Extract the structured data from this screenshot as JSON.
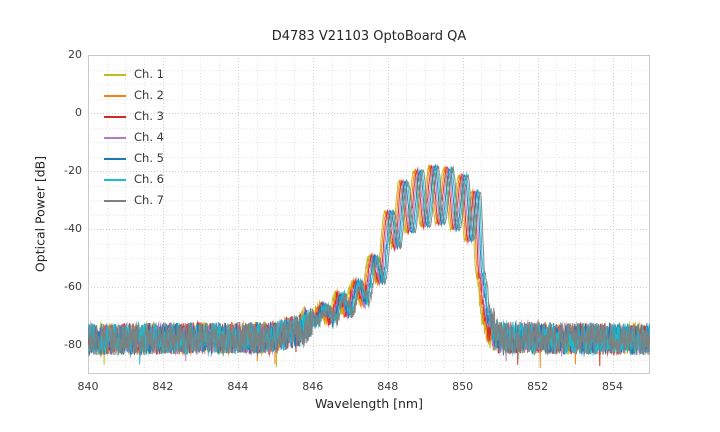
{
  "chart_data": {
    "type": "line",
    "title": "D4783 V21103 OptoBoard QA",
    "xlabel": "Wavelength [nm]",
    "ylabel": "Optical Power [dB]",
    "xlim": [
      840,
      855
    ],
    "ylim": [
      -90,
      20
    ],
    "xticks": [
      840,
      842,
      844,
      846,
      848,
      850,
      852,
      854
    ],
    "yticks": [
      20,
      0,
      -20,
      -40,
      -60,
      -80
    ],
    "minor_x_step": 0.5,
    "minor_y_step": 5,
    "grid": true,
    "legend_position": "upper-left",
    "noise_floor_db": -78,
    "noise_amplitude_db": 5.5,
    "series": [
      {
        "name": "Ch. 1",
        "color": "#bcbd22",
        "wavelength_offset_nm": -0.1
      },
      {
        "name": "Ch. 2",
        "color": "#ff7f0e",
        "wavelength_offset_nm": -0.06
      },
      {
        "name": "Ch. 3",
        "color": "#d62728",
        "wavelength_offset_nm": -0.02
      },
      {
        "name": "Ch. 4",
        "color": "#b07cc6",
        "wavelength_offset_nm": 0.02
      },
      {
        "name": "Ch. 5",
        "color": "#1f77b4",
        "wavelength_offset_nm": 0.06
      },
      {
        "name": "Ch. 6",
        "color": "#17becf",
        "wavelength_offset_nm": 0.1
      },
      {
        "name": "Ch. 7",
        "color": "#7f7f7f",
        "wavelength_offset_nm": 0.14
      }
    ],
    "envelope": [
      [
        840.0,
        -78.0
      ],
      [
        844.8,
        -77.5
      ],
      [
        845.5,
        -75.5
      ],
      [
        846.0,
        -71.5
      ],
      [
        846.28,
        -67.5
      ],
      [
        846.48,
        -71.0
      ],
      [
        846.72,
        -63.5
      ],
      [
        846.92,
        -68.5
      ],
      [
        847.16,
        -58.5
      ],
      [
        847.36,
        -64.5
      ],
      [
        847.6,
        -50.0
      ],
      [
        847.79,
        -58.0
      ],
      [
        848.02,
        -34.0
      ],
      [
        848.2,
        -46.0
      ],
      [
        848.4,
        -23.5
      ],
      [
        848.58,
        -41.0
      ],
      [
        848.8,
        -20.0
      ],
      [
        848.98,
        -39.0
      ],
      [
        849.2,
        -18.5
      ],
      [
        849.38,
        -38.0
      ],
      [
        849.6,
        -19.0
      ],
      [
        849.78,
        -40.0
      ],
      [
        850.0,
        -21.5
      ],
      [
        850.16,
        -44.0
      ],
      [
        850.33,
        -27.0
      ],
      [
        850.46,
        -56.0
      ],
      [
        850.62,
        -71.0
      ],
      [
        850.85,
        -77.5
      ],
      [
        855.0,
        -78.0
      ]
    ]
  }
}
